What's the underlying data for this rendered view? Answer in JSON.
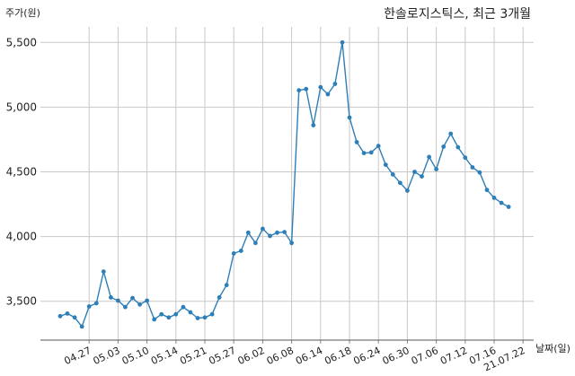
{
  "chart_data": {
    "type": "line",
    "title": "한솔로지스틱스, 최근 3개월",
    "ylabel": "주가(원)",
    "xlabel": "날짜(일)",
    "ylim": [
      3200,
      5620
    ],
    "yticks": [
      3500,
      4000,
      4500,
      5000,
      5500
    ],
    "ytick_labels": [
      "3,500",
      "4,000",
      "4,500",
      "5,000",
      "5,500"
    ],
    "xtick_labels": [
      "04.27",
      "05.03",
      "05.10",
      "05.14",
      "05.21",
      "05.27",
      "06.02",
      "06.08",
      "06.14",
      "06.18",
      "06.24",
      "06.30",
      "07.06",
      "07.12",
      "07.16",
      "21.07.22"
    ],
    "xtick_index": [
      4,
      8,
      12,
      16,
      20,
      24,
      28,
      32,
      36,
      40,
      44,
      48,
      52,
      56,
      60,
      64
    ],
    "grid": true,
    "color": "#2e7fb8",
    "series": [
      {
        "values": [
          3385,
          3405,
          3375,
          3305,
          3460,
          3485,
          3730,
          3530,
          3505,
          3455,
          3525,
          3475,
          3505,
          3360,
          3400,
          3375,
          3400,
          3455,
          3415,
          3370,
          3375,
          3400,
          3530,
          3625,
          3870,
          3890,
          4030,
          3950,
          4060,
          4005,
          4030,
          4035,
          3950,
          5130,
          5140,
          4860,
          5155,
          5100,
          5180,
          5500,
          4920,
          4730,
          4645,
          4650,
          4700,
          4555,
          4480,
          4415,
          4355,
          4500,
          4465,
          4615,
          4520,
          4695,
          4795,
          4690,
          4610,
          4535,
          4495,
          4360,
          4300,
          4260,
          4230
        ]
      }
    ]
  }
}
